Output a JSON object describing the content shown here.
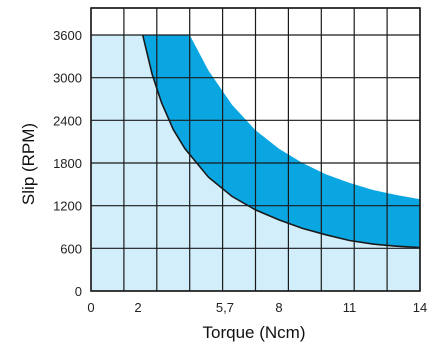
{
  "chart_data": {
    "type": "area",
    "xlabel": "Torque (Ncm)",
    "ylabel": "Slip (RPM)",
    "x_ticks": [
      {
        "value": 0,
        "label": "0"
      },
      {
        "value": 2,
        "label": "2"
      },
      {
        "value": 5.7,
        "label": "5,7"
      },
      {
        "value": 8,
        "label": "8"
      },
      {
        "value": 11,
        "label": "11"
      },
      {
        "value": 14,
        "label": "14"
      }
    ],
    "y_ticks": [
      {
        "value": 0,
        "label": "0"
      },
      {
        "value": 600,
        "label": "600"
      },
      {
        "value": 1200,
        "label": "1200"
      },
      {
        "value": 1800,
        "label": "1800"
      },
      {
        "value": 2400,
        "label": "2400"
      },
      {
        "value": 3000,
        "label": "3000"
      },
      {
        "value": 3600,
        "label": "3600"
      }
    ],
    "xlim": [
      0,
      14
    ],
    "ylim": [
      0,
      3600
    ],
    "grid": true,
    "series": [
      {
        "color": "#0aa6e2",
        "upper": {
          "x": [
            4.2,
            5.0,
            6.0,
            7.0,
            8.0,
            9.0,
            10.0,
            11.0,
            12.0,
            13.0,
            14.0
          ],
          "y": [
            3600,
            3100,
            2620,
            2260,
            2000,
            1800,
            1640,
            1520,
            1420,
            1350,
            1290
          ]
        },
        "lower": {
          "x": [
            2.2,
            2.6,
            3.0,
            3.5,
            4.0,
            5.0,
            6.0,
            7.0,
            8.0,
            9.0,
            10.0,
            11.0,
            12.0,
            13.0,
            14.0
          ],
          "y": [
            3600,
            3050,
            2650,
            2270,
            2000,
            1600,
            1330,
            1140,
            1000,
            880,
            790,
            710,
            660,
            630,
            610
          ]
        }
      }
    ],
    "background_fill": "#d2eefa",
    "grid_color": "#1a1a1a",
    "curve_color": "#1a1a1a"
  }
}
